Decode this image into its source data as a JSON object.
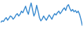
{
  "chart_data": {
    "type": "line",
    "tick_labels": false,
    "grid": false,
    "color": "#3a8bd0",
    "x": [
      1,
      2,
      3,
      4,
      5,
      6,
      7,
      8,
      9,
      10,
      11,
      12,
      13,
      14,
      15,
      16,
      17,
      18,
      19,
      20,
      21,
      22,
      23,
      24,
      25,
      26,
      27,
      28,
      29,
      30,
      31,
      32,
      33,
      34,
      35,
      36,
      37,
      38,
      39,
      40,
      41,
      42,
      43,
      44,
      45,
      46,
      47,
      48,
      49,
      50,
      51,
      52,
      53,
      54,
      55,
      56,
      57,
      58,
      59,
      60
    ],
    "values": [
      35,
      40,
      38,
      45,
      50,
      42,
      48,
      55,
      52,
      45,
      50,
      58,
      62,
      55,
      60,
      70,
      65,
      75,
      85,
      70,
      60,
      80,
      95,
      75,
      55,
      65,
      88,
      70,
      50,
      40,
      45,
      55,
      48,
      42,
      50,
      58,
      52,
      45,
      55,
      62,
      58,
      65,
      70,
      62,
      68,
      75,
      80,
      72,
      85,
      90,
      78,
      70,
      75,
      68,
      72,
      65,
      70,
      60,
      45,
      25
    ],
    "xlim": [
      1,
      60
    ],
    "ylim": [
      15,
      100
    ]
  }
}
